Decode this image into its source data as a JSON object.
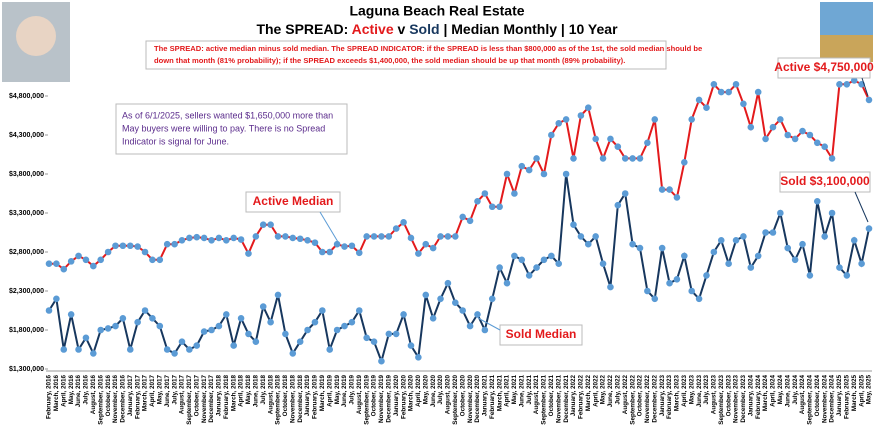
{
  "chart_data": {
    "type": "line",
    "title": "Laguna Beach Real Estate",
    "subtitle_parts": [
      "The SPREAD:  ",
      "Active",
      " v ",
      "Sold",
      " | Median Monthly | 10 Year"
    ],
    "description": [
      "The SPREAD:  active median minus sold median.  The SPREAD INDICATOR:  if the SPREAD is less than $800,000 as of the 1st, the sold median should be",
      "down that month (81% probability); if the SPREAD exceeds $1,400,000, the sold median should be up that month (89% probability)."
    ],
    "note": [
      "As of 6/1/2025, sellers wanted $1,650,000 more than",
      "May buyers were willing to pay.  There is no Spread",
      "Indicator is signal for June."
    ],
    "annotations": [
      "Active Median",
      "Sold Median",
      "Active $4,750,000",
      "Sold $3,100,000"
    ],
    "categories": [
      "February, 2016",
      "March, 2016",
      "April, 2016",
      "May, 2016",
      "June, 2016",
      "July, 2016",
      "August, 2016",
      "September, 2016",
      "October, 2016",
      "November, 2016",
      "December, 2016",
      "January, 2017",
      "February, 2017",
      "March, 2017",
      "April, 2017",
      "May, 2017",
      "June, 2017",
      "July, 2017",
      "August, 2017",
      "September, 2017",
      "October, 2017",
      "November, 2017",
      "December, 2017",
      "January, 2018",
      "February, 2018",
      "March, 2018",
      "April, 2018",
      "May, 2018",
      "June, 2018",
      "July, 2018",
      "August, 2018",
      "September, 2018",
      "October, 2018",
      "November, 2018",
      "December, 2018",
      "January, 2019",
      "February, 2019",
      "March, 2019",
      "April, 2019",
      "May, 2019",
      "June, 2019",
      "July, 2019",
      "August, 2019",
      "September, 2019",
      "October, 2019",
      "November, 2019",
      "December, 2019",
      "January, 2020",
      "February, 2020",
      "March, 2020",
      "April, 2020",
      "May, 2020",
      "June, 2020",
      "July, 2020",
      "August, 2020",
      "September, 2020",
      "October, 2020",
      "November, 2020",
      "December, 2020",
      "January, 2021",
      "February, 2021",
      "March, 2021",
      "April, 2021",
      "May, 2021",
      "June, 2021",
      "July, 2021",
      "August, 2021",
      "September, 2021",
      "October, 2021",
      "November, 2021",
      "December, 2021",
      "January, 2022",
      "February, 2022",
      "March, 2022",
      "April, 2022",
      "May, 2022",
      "June, 2022",
      "July, 2022",
      "August, 2022",
      "September, 2022",
      "October, 2022",
      "November, 2022",
      "December, 2022",
      "January, 2023",
      "February, 2023",
      "March, 2023",
      "April, 2023",
      "May, 2023",
      "June, 2023",
      "July, 2023",
      "August, 2023",
      "September, 2023",
      "October, 2023",
      "November, 2023",
      "December, 2023",
      "January, 2024",
      "February, 2024",
      "March, 2024",
      "April, 2024",
      "May, 2024",
      "June, 2024",
      "July, 2024",
      "August, 2024",
      "September, 2024",
      "October, 2024",
      "November, 2024",
      "December, 2024",
      "January, 2025",
      "February, 2025",
      "March, 2025",
      "April, 2025",
      "May, 2025"
    ],
    "series": [
      {
        "name": "Active",
        "color": "#e31a1c",
        "marker": "#5b9bd5",
        "values": [
          2650000,
          2650000,
          2580000,
          2680000,
          2750000,
          2700000,
          2620000,
          2700000,
          2800000,
          2880000,
          2880000,
          2880000,
          2870000,
          2800000,
          2700000,
          2700000,
          2900000,
          2900000,
          2950000,
          2980000,
          2990000,
          2980000,
          2950000,
          2980000,
          2950000,
          2980000,
          2960000,
          2780000,
          3000000,
          3150000,
          3150000,
          3000000,
          3000000,
          2980000,
          2970000,
          2950000,
          2920000,
          2800000,
          2800000,
          2900000,
          2870000,
          2880000,
          2790000,
          3000000,
          3000000,
          3000000,
          3000000,
          3100000,
          3180000,
          2980000,
          2780000,
          2900000,
          2850000,
          3000000,
          3000000,
          3000000,
          3250000,
          3200000,
          3450000,
          3550000,
          3380000,
          3380000,
          3800000,
          3550000,
          3900000,
          3850000,
          4000000,
          3800000,
          4300000,
          4450000,
          4500000,
          4000000,
          4550000,
          4650000,
          4250000,
          4000000,
          4250000,
          4150000,
          4000000,
          4000000,
          4000000,
          4200000,
          4500000,
          3600000,
          3600000,
          3500000,
          3950000,
          4500000,
          4750000,
          4650000,
          4950000,
          4850000,
          4850000,
          4950000,
          4700000,
          4400000,
          4850000,
          4250000,
          4400000,
          4500000,
          4300000,
          4250000,
          4350000,
          4300000,
          4200000,
          4150000,
          4000000,
          4950000,
          4950000,
          5000000,
          4950000,
          4750000
        ]
      },
      {
        "name": "Sold",
        "color": "#17375e",
        "marker": "#5b9bd5",
        "values": [
          2050000,
          2200000,
          1550000,
          2000000,
          1550000,
          1700000,
          1500000,
          1800000,
          1820000,
          1850000,
          1950000,
          1550000,
          1900000,
          2050000,
          1950000,
          1850000,
          1550000,
          1500000,
          1650000,
          1550000,
          1600000,
          1780000,
          1800000,
          1850000,
          2000000,
          1600000,
          1950000,
          1750000,
          1650000,
          2100000,
          1900000,
          2250000,
          1750000,
          1500000,
          1650000,
          1800000,
          1900000,
          2050000,
          1550000,
          1800000,
          1850000,
          1900000,
          2050000,
          1700000,
          1650000,
          1400000,
          1750000,
          1750000,
          2000000,
          1600000,
          1450000,
          2250000,
          1950000,
          2200000,
          2400000,
          2150000,
          2050000,
          1850000,
          2000000,
          1800000,
          2200000,
          2600000,
          2400000,
          2750000,
          2700000,
          2500000,
          2600000,
          2700000,
          2750000,
          2650000,
          3800000,
          3150000,
          3000000,
          2900000,
          3000000,
          2650000,
          2350000,
          3400000,
          3550000,
          2900000,
          2850000,
          2300000,
          2200000,
          2850000,
          2400000,
          2450000,
          2750000,
          2300000,
          2200000,
          2500000,
          2800000,
          2950000,
          2650000,
          2950000,
          3000000,
          2600000,
          2750000,
          3050000,
          3050000,
          3300000,
          2850000,
          2700000,
          2900000,
          2500000,
          3450000,
          3000000,
          3300000,
          2600000,
          2500000,
          2950000,
          2650000,
          3100000
        ]
      }
    ],
    "ylim": [
      1300000,
      5300000
    ],
    "yticks": [
      {
        "value": 1300000,
        "label": "$1,300,000"
      },
      {
        "value": 1800000,
        "label": "$1,800,000"
      },
      {
        "value": 2300000,
        "label": "$2,300,000"
      },
      {
        "value": 2800000,
        "label": "$2,800,000"
      },
      {
        "value": 3300000,
        "label": "$3,300,000"
      },
      {
        "value": 3800000,
        "label": "$3,800,000"
      },
      {
        "value": 4300000,
        "label": "$4,300,000"
      },
      {
        "value": 4800000,
        "label": "$4,800,000"
      }
    ],
    "grid": false
  }
}
